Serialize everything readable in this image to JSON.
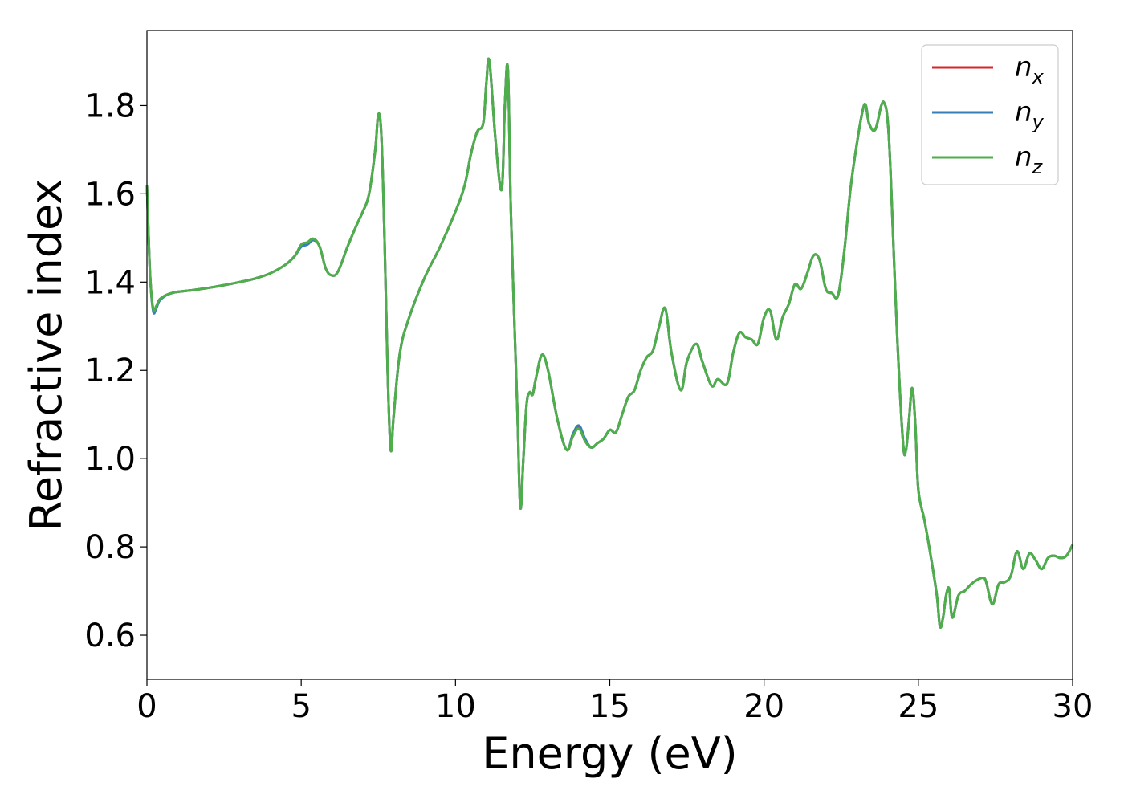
{
  "chart_data": {
    "type": "line",
    "title": "",
    "xlabel": "Energy (eV)",
    "ylabel": "Refractive index",
    "xlim": [
      0,
      30
    ],
    "ylim": [
      0.5,
      1.97
    ],
    "xticks": [
      0,
      5,
      10,
      15,
      20,
      25,
      30
    ],
    "yticks": [
      0.6,
      0.8,
      1.0,
      1.2,
      1.4,
      1.6,
      1.8
    ],
    "xtick_labels": [
      "0",
      "5",
      "10",
      "15",
      "20",
      "25",
      "30"
    ],
    "ytick_labels": [
      "0.6",
      "0.8",
      "1.0",
      "1.2",
      "1.4",
      "1.6",
      "1.8"
    ],
    "grid": false,
    "legend": "top-right",
    "x": [
      0.0,
      0.1,
      0.2,
      0.3,
      0.4,
      0.6,
      0.8,
      1.0,
      1.5,
      2.0,
      2.5,
      3.0,
      3.5,
      4.0,
      4.5,
      4.8,
      5.0,
      5.2,
      5.4,
      5.6,
      5.8,
      6.0,
      6.2,
      6.5,
      6.8,
      7.0,
      7.2,
      7.4,
      7.5,
      7.6,
      7.7,
      7.8,
      7.9,
      8.0,
      8.2,
      8.5,
      9.0,
      9.5,
      10.0,
      10.3,
      10.5,
      10.7,
      10.9,
      11.0,
      11.1,
      11.3,
      11.5,
      11.6,
      11.7,
      11.8,
      12.0,
      12.1,
      12.2,
      12.3,
      12.4,
      12.5,
      12.6,
      12.8,
      13.0,
      13.3,
      13.6,
      13.8,
      14.0,
      14.2,
      14.4,
      14.6,
      14.8,
      15.0,
      15.2,
      15.4,
      15.6,
      15.8,
      16.0,
      16.2,
      16.4,
      16.6,
      16.8,
      17.0,
      17.3,
      17.5,
      17.8,
      18.0,
      18.3,
      18.5,
      18.8,
      19.0,
      19.2,
      19.4,
      19.6,
      19.8,
      20.0,
      20.2,
      20.4,
      20.6,
      20.8,
      21.0,
      21.2,
      21.4,
      21.6,
      21.8,
      22.0,
      22.2,
      22.4,
      22.6,
      22.8,
      23.0,
      23.2,
      23.3,
      23.4,
      23.6,
      23.8,
      23.9,
      24.0,
      24.1,
      24.3,
      24.5,
      24.6,
      24.7,
      24.8,
      24.9,
      25.0,
      25.2,
      25.4,
      25.6,
      25.7,
      25.8,
      25.9,
      26.0,
      26.1,
      26.3,
      26.5,
      26.7,
      26.9,
      27.1,
      27.2,
      27.4,
      27.6,
      27.8,
      28.0,
      28.2,
      28.4,
      28.6,
      28.8,
      29.0,
      29.2,
      29.4,
      29.6,
      29.8,
      30.0
    ],
    "series": [
      {
        "name": "n_x",
        "label_base": "n",
        "label_sub": "x",
        "color": "#d62728",
        "y": [
          1.62,
          1.42,
          1.34,
          1.345,
          1.36,
          1.37,
          1.375,
          1.378,
          1.382,
          1.387,
          1.393,
          1.4,
          1.408,
          1.42,
          1.44,
          1.46,
          1.485,
          1.49,
          1.498,
          1.48,
          1.43,
          1.415,
          1.425,
          1.48,
          1.53,
          1.56,
          1.6,
          1.7,
          1.78,
          1.73,
          1.5,
          1.2,
          1.02,
          1.1,
          1.24,
          1.32,
          1.41,
          1.48,
          1.56,
          1.62,
          1.69,
          1.74,
          1.76,
          1.85,
          1.9,
          1.72,
          1.61,
          1.8,
          1.88,
          1.55,
          1.12,
          0.89,
          1.0,
          1.12,
          1.15,
          1.145,
          1.18,
          1.235,
          1.2,
          1.09,
          1.02,
          1.05,
          1.07,
          1.04,
          1.025,
          1.035,
          1.045,
          1.065,
          1.06,
          1.1,
          1.14,
          1.155,
          1.2,
          1.23,
          1.245,
          1.3,
          1.34,
          1.24,
          1.155,
          1.22,
          1.26,
          1.22,
          1.165,
          1.18,
          1.17,
          1.24,
          1.285,
          1.275,
          1.27,
          1.26,
          1.32,
          1.335,
          1.27,
          1.32,
          1.35,
          1.395,
          1.385,
          1.42,
          1.46,
          1.45,
          1.385,
          1.375,
          1.37,
          1.47,
          1.61,
          1.71,
          1.79,
          1.8,
          1.76,
          1.745,
          1.8,
          1.805,
          1.77,
          1.65,
          1.3,
          1.04,
          1.02,
          1.09,
          1.16,
          1.08,
          0.93,
          0.86,
          0.78,
          0.69,
          0.62,
          0.64,
          0.69,
          0.705,
          0.64,
          0.69,
          0.7,
          0.715,
          0.725,
          0.73,
          0.72,
          0.67,
          0.715,
          0.72,
          0.735,
          0.79,
          0.75,
          0.785,
          0.77,
          0.75,
          0.775,
          0.78,
          0.775,
          0.78,
          0.805
        ]
      },
      {
        "name": "n_y",
        "label_base": "n",
        "label_sub": "y",
        "color": "#377eb8",
        "y": [
          1.62,
          1.42,
          1.335,
          1.34,
          1.357,
          1.369,
          1.375,
          1.378,
          1.382,
          1.387,
          1.393,
          1.4,
          1.408,
          1.42,
          1.44,
          1.46,
          1.48,
          1.485,
          1.495,
          1.48,
          1.43,
          1.415,
          1.425,
          1.48,
          1.53,
          1.56,
          1.6,
          1.7,
          1.78,
          1.73,
          1.5,
          1.2,
          1.02,
          1.1,
          1.24,
          1.32,
          1.41,
          1.48,
          1.56,
          1.62,
          1.69,
          1.74,
          1.76,
          1.85,
          1.9,
          1.72,
          1.61,
          1.8,
          1.88,
          1.55,
          1.12,
          0.89,
          1.0,
          1.12,
          1.15,
          1.145,
          1.18,
          1.235,
          1.2,
          1.09,
          1.02,
          1.055,
          1.075,
          1.045,
          1.025,
          1.035,
          1.045,
          1.065,
          1.06,
          1.1,
          1.14,
          1.155,
          1.2,
          1.23,
          1.245,
          1.3,
          1.34,
          1.24,
          1.155,
          1.22,
          1.26,
          1.22,
          1.165,
          1.18,
          1.17,
          1.24,
          1.285,
          1.275,
          1.27,
          1.26,
          1.32,
          1.335,
          1.27,
          1.32,
          1.35,
          1.395,
          1.385,
          1.42,
          1.46,
          1.45,
          1.385,
          1.375,
          1.37,
          1.47,
          1.61,
          1.71,
          1.79,
          1.8,
          1.76,
          1.745,
          1.8,
          1.805,
          1.77,
          1.65,
          1.3,
          1.04,
          1.02,
          1.09,
          1.16,
          1.08,
          0.93,
          0.86,
          0.78,
          0.69,
          0.62,
          0.64,
          0.69,
          0.705,
          0.64,
          0.69,
          0.7,
          0.715,
          0.725,
          0.73,
          0.72,
          0.67,
          0.715,
          0.72,
          0.735,
          0.79,
          0.75,
          0.785,
          0.77,
          0.75,
          0.775,
          0.78,
          0.775,
          0.78,
          0.805
        ]
      },
      {
        "name": "n_z",
        "label_base": "n",
        "label_sub": "z",
        "color": "#4daf4a",
        "y": [
          1.62,
          1.42,
          1.34,
          1.345,
          1.36,
          1.37,
          1.375,
          1.378,
          1.382,
          1.387,
          1.393,
          1.4,
          1.408,
          1.42,
          1.44,
          1.46,
          1.485,
          1.49,
          1.498,
          1.48,
          1.43,
          1.415,
          1.425,
          1.48,
          1.53,
          1.56,
          1.6,
          1.7,
          1.78,
          1.73,
          1.5,
          1.2,
          1.02,
          1.1,
          1.24,
          1.32,
          1.41,
          1.48,
          1.56,
          1.62,
          1.69,
          1.74,
          1.76,
          1.85,
          1.9,
          1.72,
          1.61,
          1.8,
          1.88,
          1.55,
          1.12,
          0.89,
          1.0,
          1.12,
          1.15,
          1.145,
          1.18,
          1.235,
          1.2,
          1.09,
          1.02,
          1.05,
          1.068,
          1.04,
          1.025,
          1.035,
          1.045,
          1.065,
          1.06,
          1.1,
          1.14,
          1.155,
          1.2,
          1.23,
          1.245,
          1.3,
          1.34,
          1.24,
          1.155,
          1.22,
          1.26,
          1.22,
          1.165,
          1.18,
          1.17,
          1.24,
          1.285,
          1.275,
          1.27,
          1.26,
          1.32,
          1.335,
          1.27,
          1.32,
          1.35,
          1.395,
          1.385,
          1.42,
          1.46,
          1.45,
          1.385,
          1.375,
          1.37,
          1.47,
          1.61,
          1.71,
          1.79,
          1.8,
          1.76,
          1.745,
          1.8,
          1.805,
          1.77,
          1.65,
          1.3,
          1.04,
          1.02,
          1.09,
          1.16,
          1.08,
          0.93,
          0.86,
          0.78,
          0.69,
          0.62,
          0.64,
          0.69,
          0.705,
          0.64,
          0.69,
          0.7,
          0.715,
          0.725,
          0.73,
          0.72,
          0.67,
          0.715,
          0.72,
          0.735,
          0.79,
          0.75,
          0.785,
          0.77,
          0.75,
          0.775,
          0.78,
          0.775,
          0.78,
          0.805
        ]
      }
    ]
  }
}
